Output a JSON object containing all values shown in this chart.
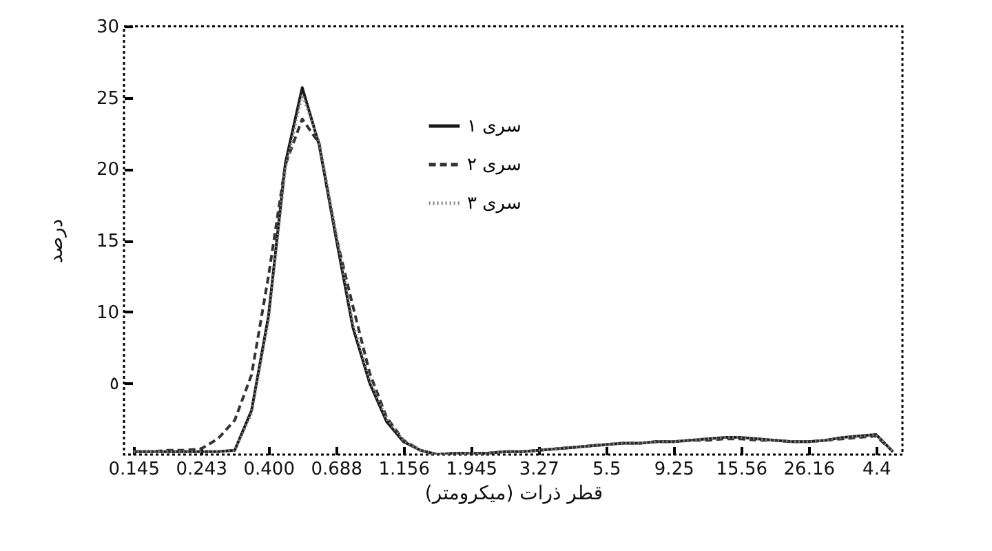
{
  "chart_data": {
    "type": "line",
    "xlabel": "قطر ذرات (میکرومتر)",
    "ylabel": "درصد",
    "ylim": [
      0,
      30
    ],
    "yticks": [
      {
        "value": 5,
        "label": "٥"
      },
      10,
      15,
      20,
      25,
      30
    ],
    "categories": [
      "0.145",
      null,
      null,
      null,
      "0.243",
      null,
      null,
      null,
      "0.400",
      null,
      null,
      null,
      "0.688",
      null,
      null,
      null,
      "1.156",
      null,
      null,
      null,
      "1.945",
      null,
      null,
      null,
      "3.27",
      null,
      null,
      null,
      "5.5",
      null,
      null,
      null,
      "9.25",
      null,
      null,
      null,
      "15.56",
      null,
      null,
      null,
      "26.16",
      null,
      null,
      null,
      "4.4",
      null
    ],
    "series": [
      {
        "name": "سری ۱",
        "color": "#1a1a1a",
        "line_style": "solid",
        "values": [
          0.2,
          0.2,
          0.2,
          0.2,
          0.2,
          0.2,
          0.3,
          3.1,
          9.7,
          20.4,
          25.7,
          21.7,
          15.2,
          8.9,
          5.0,
          2.3,
          0.9,
          0.3,
          0,
          0.1,
          0.1,
          0.1,
          0.2,
          0.2,
          0.3,
          0.4,
          0.5,
          0.6,
          0.7,
          0.8,
          0.8,
          0.9,
          0.9,
          1.0,
          1.1,
          1.2,
          1.2,
          1.1,
          1.0,
          0.9,
          0.9,
          1.0,
          1.2,
          1.3,
          1.4,
          0.2
        ]
      },
      {
        "name": "سری ۲",
        "color": "#333333",
        "line_style": "dashed",
        "values": [
          0.2,
          0.2,
          0.3,
          0.3,
          0.4,
          1.1,
          2.4,
          5.6,
          12.5,
          20.3,
          23.5,
          21.8,
          15.3,
          10.4,
          5.7,
          2.6,
          1.0,
          0.3,
          0,
          0.1,
          0.1,
          0.1,
          0.2,
          0.2,
          0.3,
          0.4,
          0.5,
          0.6,
          0.7,
          0.8,
          0.8,
          0.9,
          0.9,
          1.0,
          1.0,
          1.1,
          1.1,
          1.0,
          1.0,
          0.9,
          0.9,
          1.0,
          1.1,
          1.2,
          1.3,
          0.2
        ]
      },
      {
        "name": "سری ۳",
        "color": "#8a7f80",
        "line_style": "dotted",
        "values": [
          0.2,
          0.2,
          0.2,
          0.2,
          0.2,
          0.2,
          0.3,
          2.9,
          9.4,
          20.0,
          25.2,
          21.9,
          15.6,
          9.2,
          5.2,
          2.5,
          1.0,
          0.3,
          0,
          0.1,
          0.1,
          0.1,
          0.2,
          0.2,
          0.3,
          0.4,
          0.5,
          0.6,
          0.7,
          0.8,
          0.8,
          0.9,
          0.9,
          1.0,
          1.1,
          1.2,
          1.2,
          1.1,
          1.0,
          0.9,
          0.9,
          1.0,
          1.2,
          1.3,
          1.4,
          0.2
        ]
      }
    ],
    "grid": false,
    "legend": "top",
    "marker": "none"
  }
}
